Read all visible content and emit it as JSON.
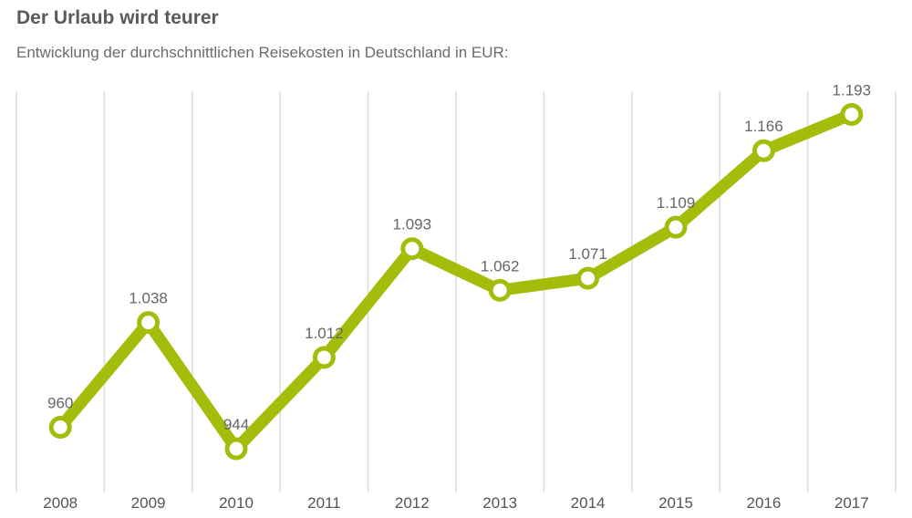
{
  "header": {
    "title": "Der Urlaub wird teurer",
    "subtitle": "Entwicklung der durchschnittlichen Reisekosten in Deutschland in EUR:"
  },
  "colors": {
    "line": "#a3bd0a",
    "marker_fill": "#ffffff",
    "grid": "#dddddd",
    "text": "#666666"
  },
  "chart_data": {
    "type": "line",
    "title": "Der Urlaub wird teurer",
    "subtitle": "Entwicklung der durchschnittlichen Reisekosten in Deutschland in EUR:",
    "categories": [
      "2008",
      "2009",
      "2010",
      "2011",
      "2012",
      "2013",
      "2014",
      "2015",
      "2016",
      "2017"
    ],
    "values": [
      960,
      1038,
      944,
      1012,
      1093,
      1062,
      1071,
      1109,
      1166,
      1193
    ],
    "value_labels": [
      "960",
      "1.038",
      "944",
      "1.012",
      "1.093",
      "1.062",
      "1.071",
      "1.109",
      "1.166",
      "1.193"
    ],
    "xlabel": "",
    "ylabel": "EUR",
    "ylim": [
      880,
      1240
    ],
    "grid": "vertical",
    "legend": "none"
  }
}
